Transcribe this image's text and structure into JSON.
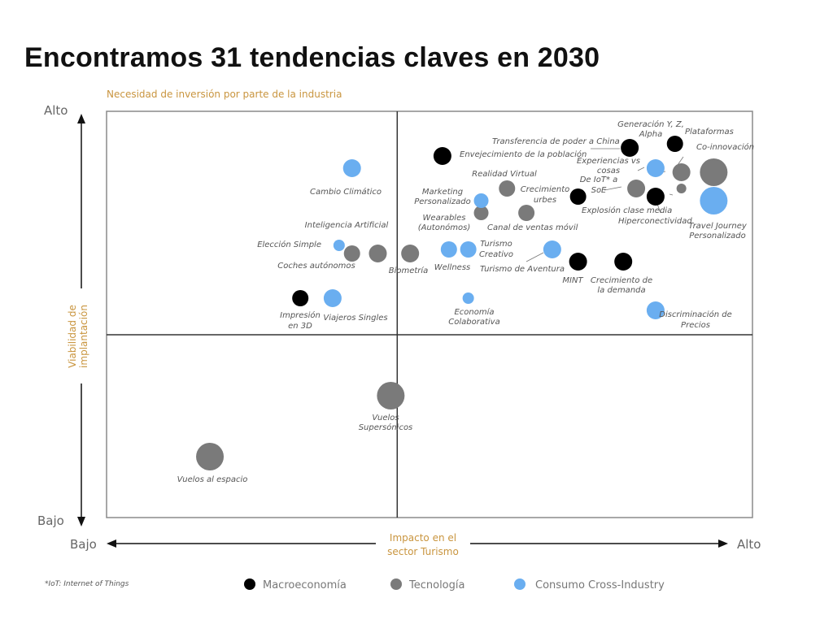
{
  "slide_title": "Encontramos 31 tendencias claves en 2030",
  "chart_data": {
    "type": "scatter",
    "title": "",
    "ylabel_top": "Necesidad de inversión por parte de la industria",
    "ylabel_side": [
      "Viabilidad de",
      "implantación"
    ],
    "xlabel": [
      "Impacto en el",
      "sector Turismo"
    ],
    "y_high": "Alto",
    "y_low": "Bajo",
    "x_low": "Bajo",
    "x_high": "Alto",
    "xlim": [
      0,
      100
    ],
    "ylim": [
      0,
      100
    ],
    "quadrant_split": {
      "x": 45,
      "y": 45
    },
    "legend_placement": "bottom",
    "footnote": "*IoT: Internet of Things",
    "colors": {
      "Macroeconomía": "#000000",
      "Tecnología": "#7a7a7a",
      "Consumo Cross-Industry": "#6aaef0"
    },
    "series": [
      {
        "name": "Macroeconomía",
        "points": [
          {
            "label": "Envejecimiento de la población",
            "x": 52,
            "y": 89,
            "size": 11
          },
          {
            "label": "Transferencia de poder a China",
            "x": 81,
            "y": 91,
            "size": 11
          },
          {
            "label": "Plataformas",
            "x": 88,
            "y": 92,
            "size": 10
          },
          {
            "label": "De IoT* a SoE",
            "x": 73,
            "y": 79,
            "size": 10
          },
          {
            "label": "Hiperconectividad",
            "x": 85,
            "y": 79,
            "size": 11
          },
          {
            "label": "MINT",
            "x": 73,
            "y": 63,
            "size": 11
          },
          {
            "label": "Crecimiento de la demanda",
            "x": 80,
            "y": 63,
            "size": 11
          },
          {
            "label": "Impresión en 3D",
            "x": 30,
            "y": 54,
            "size": 10
          }
        ]
      },
      {
        "name": "Tecnología",
        "points": [
          {
            "label": "Co-innovación",
            "x": 94,
            "y": 85,
            "size": 17
          },
          {
            "label": "Generación Y, Z, Alpha",
            "x": 89,
            "y": 85,
            "size": 11
          },
          {
            "label": "Explosión clase media",
            "x": 82,
            "y": 81,
            "size": 11
          },
          {
            "label": "Plataformas (pequeño)",
            "x": 89,
            "y": 81,
            "size": 6
          },
          {
            "label": "Realidad Virtual",
            "x": 62,
            "y": 81,
            "size": 10
          },
          {
            "label": "Wearables (Autonómos)",
            "x": 58,
            "y": 75,
            "size": 9
          },
          {
            "label": "Canal de ventas móvil",
            "x": 65,
            "y": 75,
            "size": 10
          },
          {
            "label": "Coches autónomos",
            "x": 38,
            "y": 65,
            "size": 10
          },
          {
            "label": "Inteligencia Artificial",
            "x": 42,
            "y": 65,
            "size": 11
          },
          {
            "label": "Biometría",
            "x": 47,
            "y": 65,
            "size": 11
          },
          {
            "label": "Vuelos Supersónicos",
            "x": 44,
            "y": 30,
            "size": 17
          },
          {
            "label": "Vuelos al espacio",
            "x": 16,
            "y": 15,
            "size": 17
          }
        ]
      },
      {
        "name": "Consumo Cross-Industry",
        "points": [
          {
            "label": "Experiencias vs cosas",
            "x": 85,
            "y": 86,
            "size": 11
          },
          {
            "label": "Travel Journey Personalizado",
            "x": 94,
            "y": 78,
            "size": 17
          },
          {
            "label": "Cambio Climático",
            "x": 38,
            "y": 86,
            "size": 11
          },
          {
            "label": "Marketing Personalizado",
            "x": 58,
            "y": 78,
            "size": 9
          },
          {
            "label": "Elección Simple",
            "x": 36,
            "y": 67,
            "size": 7
          },
          {
            "label": "Wellness",
            "x": 53,
            "y": 66,
            "size": 10
          },
          {
            "label": "Turismo Creativo",
            "x": 56,
            "y": 66,
            "size": 10
          },
          {
            "label": "Turismo de Aventura",
            "x": 69,
            "y": 66,
            "size": 11
          },
          {
            "label": "Viajeros Singles",
            "x": 35,
            "y": 54,
            "size": 11
          },
          {
            "label": "Economía Colaborativa",
            "x": 56,
            "y": 54,
            "size": 7
          },
          {
            "label": "Discriminación de Precios",
            "x": 85,
            "y": 51,
            "size": 11
          }
        ]
      }
    ],
    "annotations": [
      {
        "text": "Envejecimiento de la población"
      },
      {
        "text": "Transferencia de poder a China"
      },
      {
        "text": "Generación Y, Z,"
      },
      {
        "text": "Alpha"
      },
      {
        "text": "Plataformas"
      },
      {
        "text": "Co-innovación"
      },
      {
        "text": "Experiencias vs"
      },
      {
        "text": "cosas"
      },
      {
        "text": "De IoT* a"
      },
      {
        "text": "SoE"
      },
      {
        "text": "Explosión clase media"
      },
      {
        "text": "Hiperconectividad"
      },
      {
        "text": "Travel Journey"
      },
      {
        "text": "Personalizado"
      },
      {
        "text": "Realidad Virtual"
      },
      {
        "text": "Crecimiento"
      },
      {
        "text": "urbes"
      },
      {
        "text": "Marketing"
      },
      {
        "text": "Personalizado"
      },
      {
        "text": "Wearables"
      },
      {
        "text": "(Autonómos)"
      },
      {
        "text": "Canal de ventas móvil"
      },
      {
        "text": "Cambio Climático"
      },
      {
        "text": "Inteligencia Artificial"
      },
      {
        "text": "Elección Simple"
      },
      {
        "text": "Coches autónomos"
      },
      {
        "text": "Biometría"
      },
      {
        "text": "Wellness"
      },
      {
        "text": "Turismo"
      },
      {
        "text": "Creativo"
      },
      {
        "text": "Turismo de Aventura"
      },
      {
        "text": "MINT"
      },
      {
        "text": "Crecimiento de"
      },
      {
        "text": "la demanda"
      },
      {
        "text": "Impresión"
      },
      {
        "text": "en 3D"
      },
      {
        "text": "Viajeros Singles"
      },
      {
        "text": "Economía"
      },
      {
        "text": "Colaborativa"
      },
      {
        "text": "Discriminación de"
      },
      {
        "text": "Precios"
      },
      {
        "text": "Vuelos"
      },
      {
        "text": "Supersónicos"
      },
      {
        "text": "Vuelos al espacio"
      }
    ]
  }
}
